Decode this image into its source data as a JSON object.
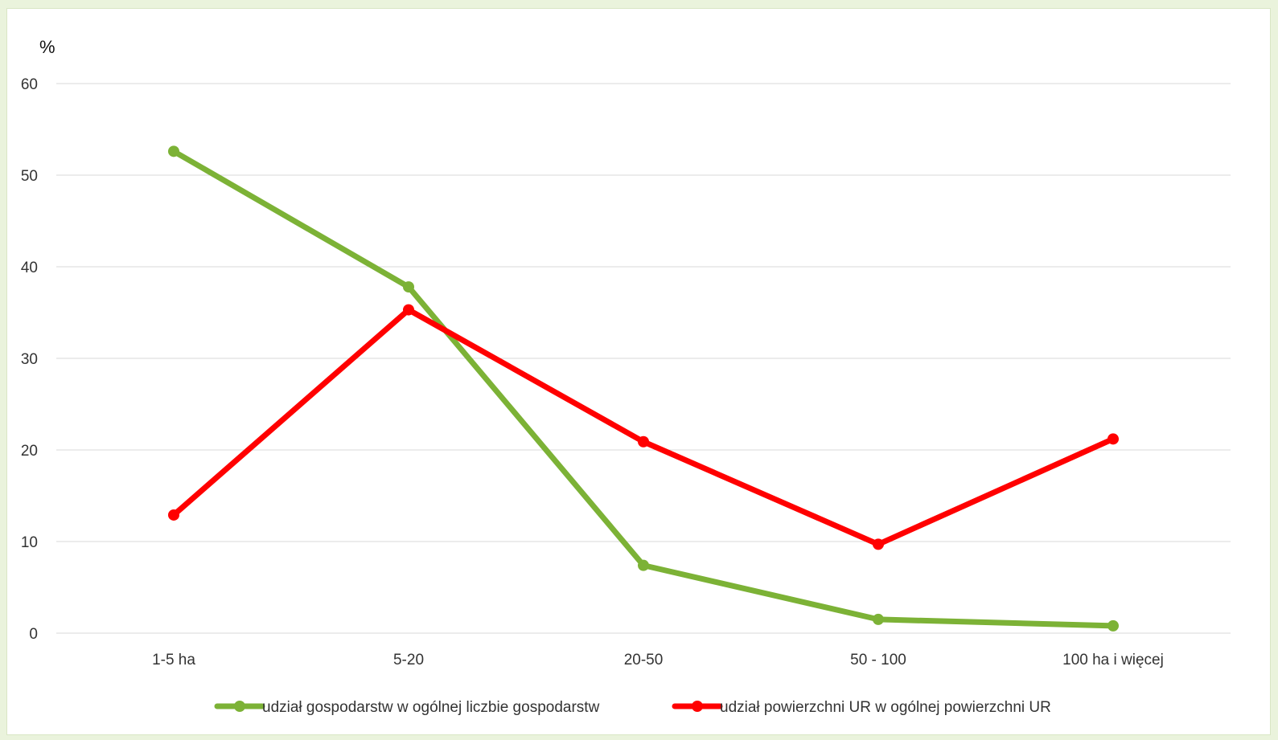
{
  "chart_data": {
    "type": "line",
    "title": "",
    "xlabel": "",
    "ylabel": "%",
    "ylim": [
      0,
      60
    ],
    "yticks": [
      0,
      10,
      20,
      30,
      40,
      50,
      60
    ],
    "grid": true,
    "legend_placement": "bottom",
    "categories": [
      "1-5 ha",
      "5-20",
      "20-50",
      "50 - 100",
      "100 ha i więcej"
    ],
    "series": [
      {
        "name": "udział gospodarstw w ogólnej liczbie gospodarstw",
        "color": "#7cb236",
        "values": [
          52.6,
          37.8,
          7.4,
          1.5,
          0.8
        ]
      },
      {
        "name": "udział powierzchni UR w ogólnej powierzchni UR",
        "color": "#ff0000",
        "values": [
          12.9,
          35.3,
          20.9,
          9.7,
          21.2
        ]
      }
    ]
  }
}
